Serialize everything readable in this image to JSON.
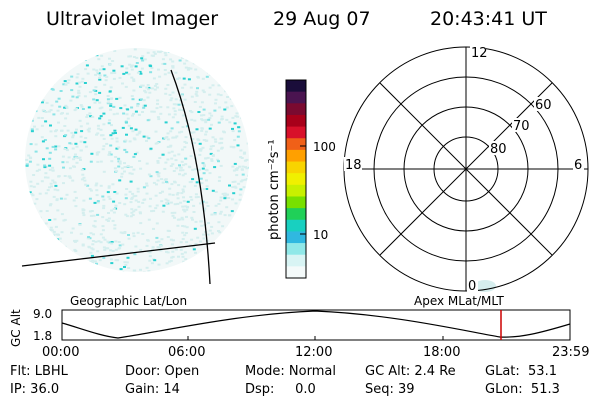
{
  "header": {
    "instrument": "Ultraviolet Imager",
    "date": "29 Aug 07",
    "time": "20:43:41 UT"
  },
  "colorbar": {
    "unit_label": "photon cm⁻²s⁻¹",
    "tick_labels": [
      "100",
      "10"
    ],
    "colors": [
      "#1a0d3a",
      "#4a1450",
      "#7a0a30",
      "#a8001a",
      "#d8102a",
      "#f06018",
      "#ffa000",
      "#f8d400",
      "#f0f000",
      "#c8f000",
      "#78e000",
      "#20d058",
      "#18d0c0",
      "#30b8e0",
      "#90e8e8",
      "#d8f4f4",
      "#f4fafa"
    ]
  },
  "polar_plot": {
    "mlt_labels": [
      "12",
      "18",
      "6",
      "0"
    ],
    "lat_labels": [
      "60",
      "70",
      "80"
    ]
  },
  "altitude_panel": {
    "title_left": "Geographic Lat/Lon",
    "title_right": "Apex MLat/MLT",
    "y_axis_label": "GC Alt",
    "y_ticks": [
      "9.0",
      "1.8"
    ],
    "x_ticks": [
      "00:00",
      "06:00",
      "12:00",
      "18:00",
      "23:59"
    ],
    "current_time_color": "#cc0000"
  },
  "info": {
    "filter": "Flt: LBHL",
    "door": "Door: Open",
    "mode": "Mode: Normal",
    "gc_alt": "GC Alt: 2.4 Re",
    "glat": "GLat:  53.1",
    "ip": "IP: 36.0",
    "gain": "Gain: 14",
    "dsp": "Dsp:     0.0",
    "seq": "Seq: 39",
    "glon": "GLon:  51.3"
  }
}
